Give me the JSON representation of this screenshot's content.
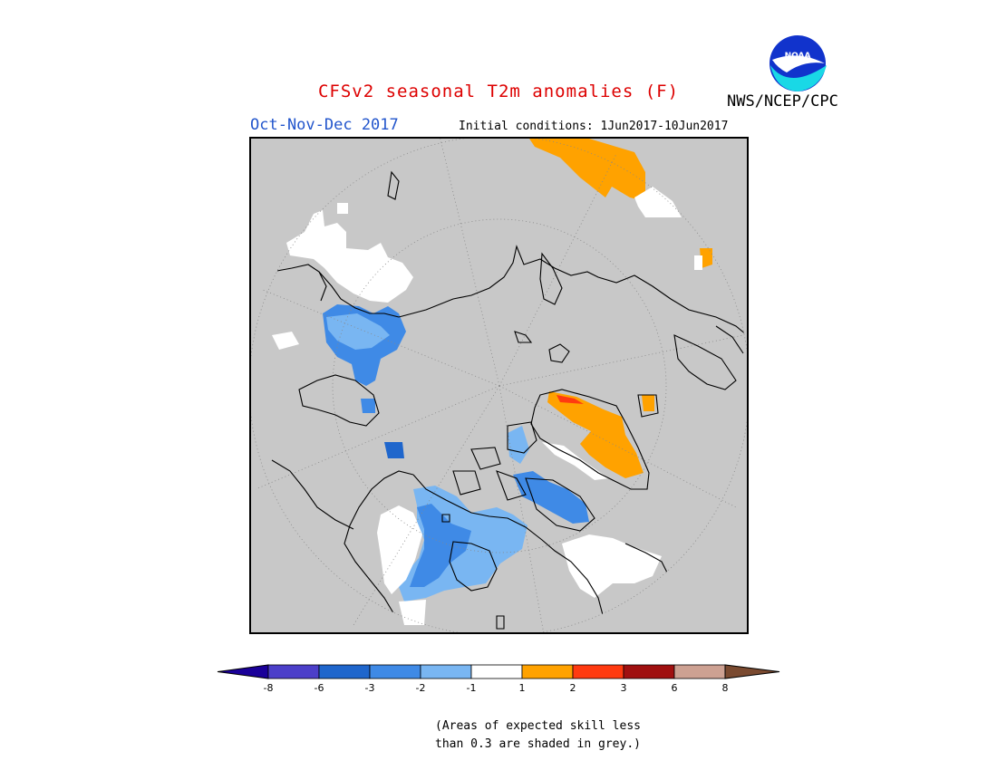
{
  "title": "CFSv2 seasonal T2m anomalies (F)",
  "agency_label": "NWS/NCEP/CPC",
  "logo_text": "NOAA",
  "period": "Oct-Nov-Dec 2017",
  "initial_conditions": "Initial conditions: 1Jun2017-10Jun2017",
  "note_line1": "(Areas of expected skill less",
  "note_line2": "than 0.3 are shaded in grey.)",
  "colors": {
    "title": "#dd0000",
    "period": "#2255cc",
    "grey_skill": "#c8c8c8",
    "land_outline": "#000000"
  },
  "legend": {
    "min_color": "#1a0099",
    "max_color": "#7a4a30",
    "bins": [
      {
        "color": "#4c3fc9",
        "label": ""
      },
      {
        "color": "#1f66cc",
        "label": ""
      },
      {
        "color": "#3f8ae6",
        "label": ""
      },
      {
        "color": "#79b6f2",
        "label": ""
      },
      {
        "color": "#ffffff",
        "label": ""
      },
      {
        "color": "#ffa200",
        "label": ""
      },
      {
        "color": "#ff3a10",
        "label": ""
      },
      {
        "color": "#a01010",
        "label": ""
      },
      {
        "color": "#cda192",
        "label": ""
      }
    ],
    "ticks": [
      "-8",
      "-6",
      "-3",
      "-2",
      "-1",
      "1",
      "2",
      "3",
      "6",
      "8"
    ]
  }
}
